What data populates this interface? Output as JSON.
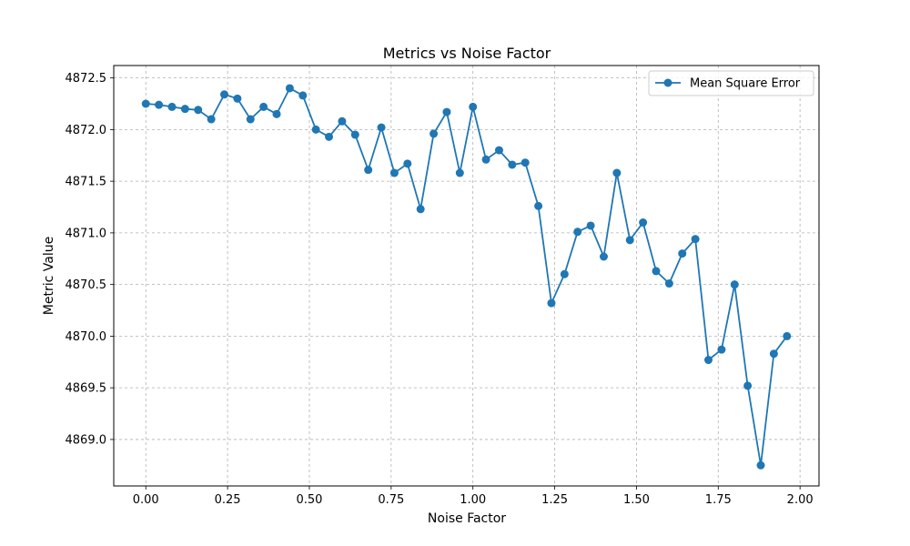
{
  "chart_data": {
    "type": "line",
    "title": "Metrics vs Noise Factor",
    "xlabel": "Noise Factor",
    "ylabel": "Metric Value",
    "xlim": [
      -0.098,
      2.058
    ],
    "ylim": [
      4868.55,
      4872.62
    ],
    "xticks": [
      0.0,
      0.25,
      0.5,
      0.75,
      1.0,
      1.25,
      1.5,
      1.75,
      2.0
    ],
    "xtick_labels": [
      "0.00",
      "0.25",
      "0.50",
      "0.75",
      "1.00",
      "1.25",
      "1.50",
      "1.75",
      "2.00"
    ],
    "yticks": [
      4869.0,
      4869.5,
      4870.0,
      4870.5,
      4871.0,
      4871.5,
      4872.0,
      4872.5
    ],
    "ytick_labels": [
      "4869.0",
      "4869.5",
      "4870.0",
      "4870.5",
      "4871.0",
      "4871.5",
      "4872.0",
      "4872.5"
    ],
    "grid": true,
    "legend_position": "top-right",
    "series": [
      {
        "name": "Mean Square Error",
        "color": "#1f77b4",
        "marker": "circle",
        "x": [
          0.0,
          0.04,
          0.08,
          0.12,
          0.16,
          0.2,
          0.24,
          0.28,
          0.32,
          0.36,
          0.4,
          0.44,
          0.48,
          0.52,
          0.56,
          0.6,
          0.64,
          0.68,
          0.72,
          0.76,
          0.8,
          0.84,
          0.88,
          0.92,
          0.96,
          1.0,
          1.04,
          1.08,
          1.12,
          1.16,
          1.2,
          1.24,
          1.28,
          1.32,
          1.36,
          1.4,
          1.44,
          1.48,
          1.52,
          1.56,
          1.6,
          1.64,
          1.68,
          1.72,
          1.76,
          1.8,
          1.84,
          1.88,
          1.92,
          1.96
        ],
        "values": [
          4872.25,
          4872.24,
          4872.22,
          4872.2,
          4872.19,
          4872.1,
          4872.34,
          4872.3,
          4872.1,
          4872.22,
          4872.15,
          4872.4,
          4872.33,
          4872.0,
          4871.93,
          4872.08,
          4871.95,
          4871.61,
          4872.02,
          4871.58,
          4871.67,
          4871.23,
          4871.96,
          4872.17,
          4871.58,
          4872.22,
          4871.71,
          4871.8,
          4871.66,
          4871.68,
          4871.26,
          4870.32,
          4870.6,
          4871.01,
          4871.07,
          4870.77,
          4871.58,
          4870.93,
          4871.1,
          4870.63,
          4870.51,
          4870.8,
          4870.94,
          4869.77,
          4869.87,
          4870.5,
          4869.52,
          4868.75,
          4869.83,
          4870.0
        ]
      }
    ]
  }
}
